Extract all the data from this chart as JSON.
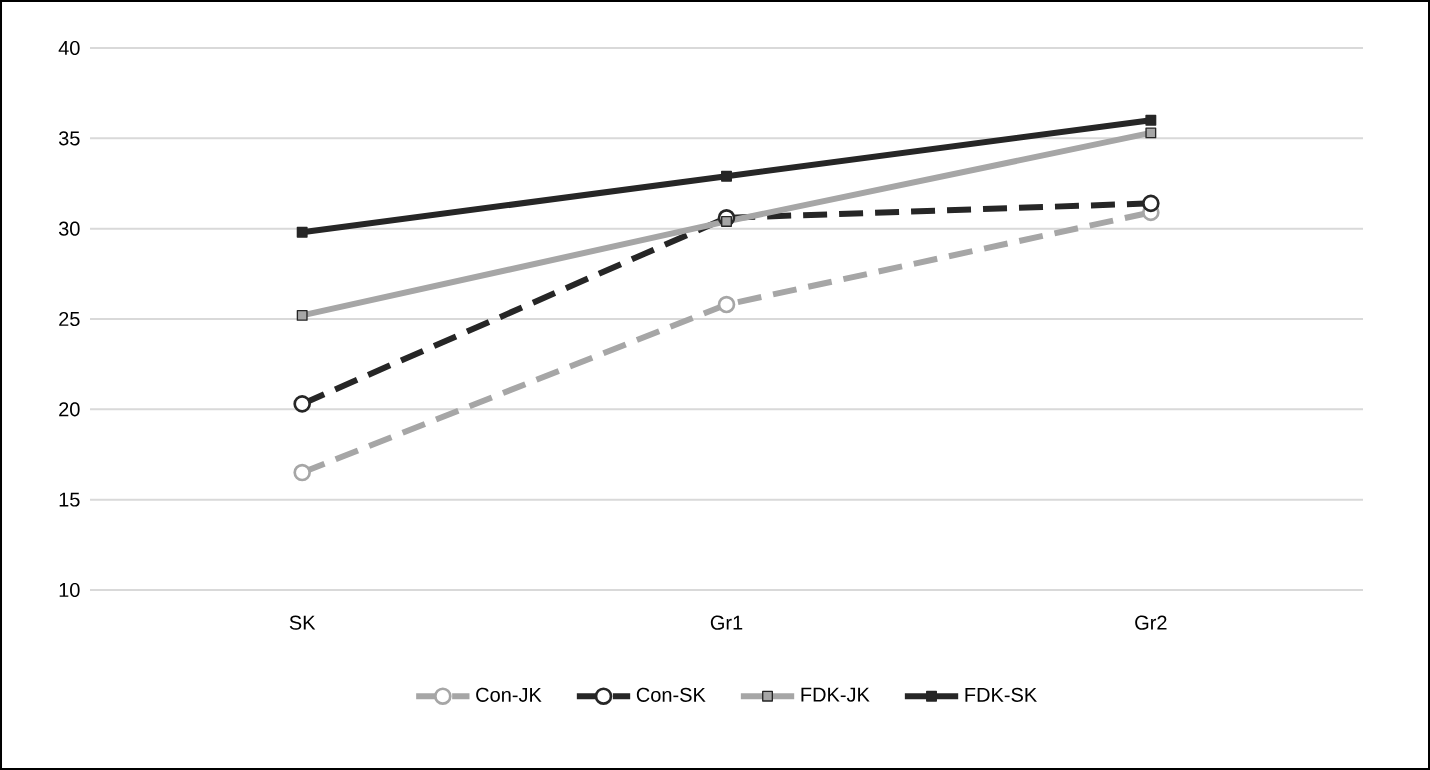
{
  "chart_data": {
    "type": "line",
    "categories": [
      "SK",
      "Gr1",
      "Gr2"
    ],
    "series": [
      {
        "name": "Con-JK",
        "color": "#a6a6a6",
        "values": [
          16.5,
          25.8,
          30.9
        ],
        "marker": "circle",
        "line_style": "dashed"
      },
      {
        "name": "Con-SK",
        "color": "#262626",
        "values": [
          20.3,
          30.6,
          31.4
        ],
        "marker": "circle",
        "line_style": "dashed"
      },
      {
        "name": "FDK-JK",
        "color": "#a6a6a6",
        "values": [
          25.2,
          30.4,
          35.3
        ],
        "marker": "square",
        "line_style": "solid"
      },
      {
        "name": "FDK-SK",
        "color": "#262626",
        "values": [
          29.8,
          32.9,
          36.0
        ],
        "marker": "square",
        "line_style": "solid"
      }
    ],
    "ylim": [
      10,
      40
    ],
    "yticks": [
      10,
      15,
      20,
      25,
      30,
      35,
      40
    ],
    "grid": "y",
    "legend": "bottom"
  }
}
